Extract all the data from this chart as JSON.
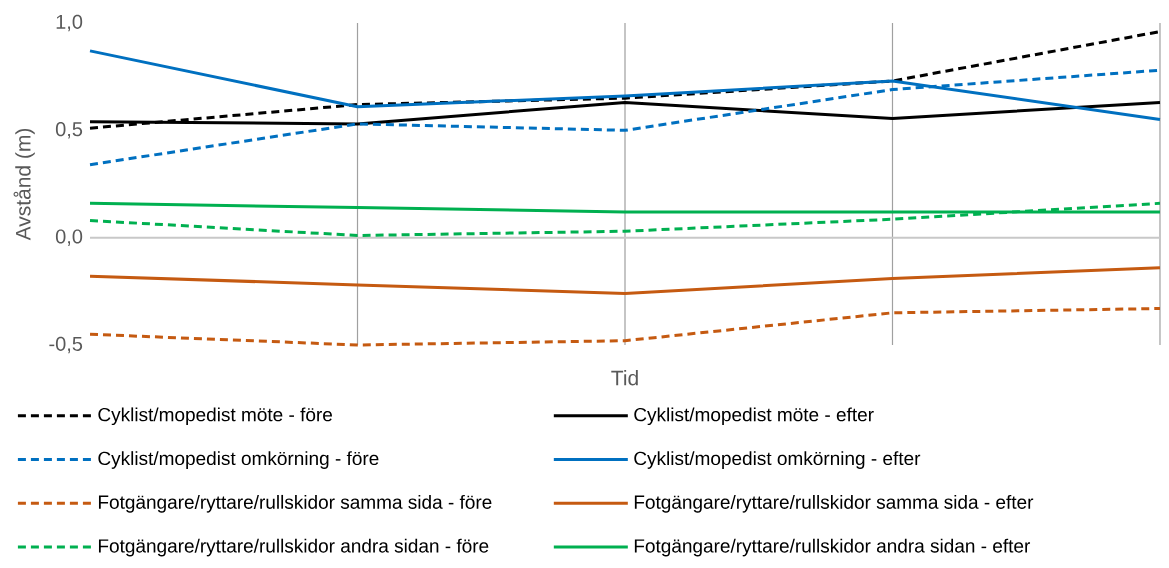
{
  "chart_data": {
    "type": "line",
    "xlabel": "Tid",
    "ylabel": "Avstånd (m)",
    "categories": [
      null,
      null,
      null,
      null,
      null
    ],
    "ylim": [
      -0.5,
      1.0
    ],
    "yticks": [
      {
        "value": -0.5,
        "label": "-0,5"
      },
      {
        "value": 0.0,
        "label": "0,0"
      },
      {
        "value": 0.5,
        "label": "0,5"
      },
      {
        "value": 1.0,
        "label": "1,0"
      }
    ],
    "grid": "x",
    "legend": "bottom",
    "series": [
      {
        "name": "Cyklist/mopedist möte - före",
        "color": "#000000",
        "line_style": "dashed",
        "values": [
          0.51,
          0.62,
          0.65,
          0.73,
          0.96
        ]
      },
      {
        "name": "Cyklist/mopedist möte - efter",
        "color": "#000000",
        "line_style": "solid",
        "values": [
          0.54,
          0.53,
          0.63,
          0.555,
          0.63
        ]
      },
      {
        "name": "Cyklist/mopedist omkörning - före",
        "color": "#0070c0",
        "line_style": "dashed",
        "values": [
          0.34,
          0.53,
          0.5,
          0.69,
          0.78
        ]
      },
      {
        "name": "Cyklist/mopedist omkörning - efter",
        "color": "#0070c0",
        "line_style": "solid",
        "values": [
          0.87,
          0.61,
          0.66,
          0.73,
          0.55
        ]
      },
      {
        "name": "Fotgängare/ryttare/rullskidor samma sida - före",
        "color": "#c55a11",
        "line_style": "dashed",
        "values": [
          -0.45,
          -0.5,
          -0.48,
          -0.35,
          -0.33
        ]
      },
      {
        "name": "Fotgängare/ryttare/rullskidor samma sida - efter",
        "color": "#c55a11",
        "line_style": "solid",
        "values": [
          -0.18,
          -0.22,
          -0.26,
          -0.19,
          -0.14
        ]
      },
      {
        "name": "Fotgängare/ryttare/rullskidor andra sidan - före",
        "color": "#00b050",
        "line_style": "dashed",
        "values": [
          0.08,
          0.01,
          0.03,
          0.086,
          0.16
        ]
      },
      {
        "name": "Fotgängare/ryttare/rullskidor andra sidan - efter",
        "color": "#00b050",
        "line_style": "solid",
        "values": [
          0.16,
          0.14,
          0.12,
          0.12,
          0.12
        ]
      }
    ]
  }
}
